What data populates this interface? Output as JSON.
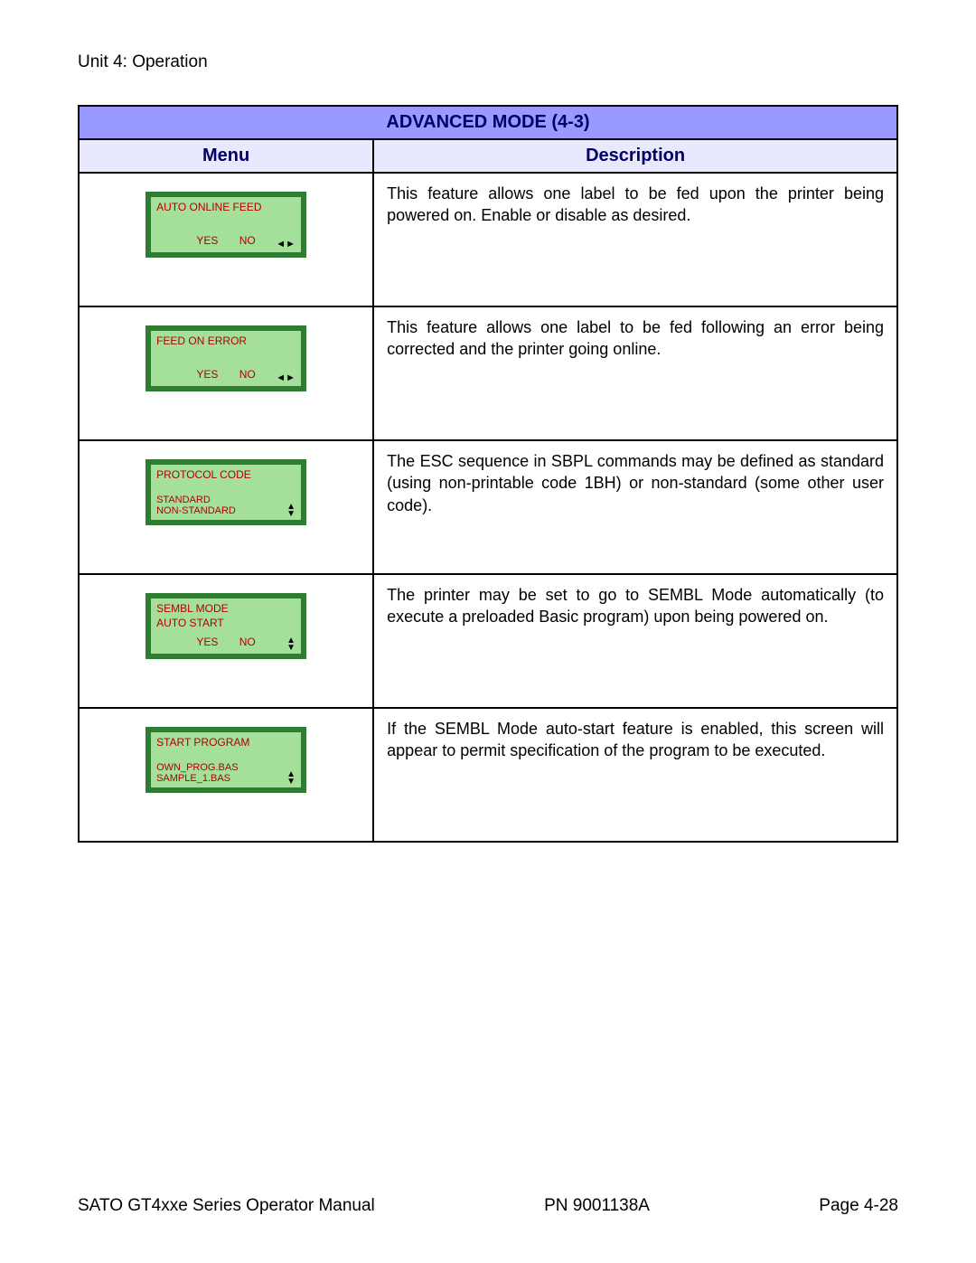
{
  "header": {
    "unit_line": "Unit 4:   Operation"
  },
  "table": {
    "title": "ADVANCED MODE (4-3)",
    "col_menu": "Menu",
    "col_desc": "Description",
    "colors": {
      "title_bg": "#9999ff",
      "header_bg": "#e8e8ff",
      "header_fg": "#000066",
      "lcd_frame": "#2e7d32",
      "lcd_screen": "#a5e09b",
      "lcd_text": "#b00000",
      "border": "#000000"
    },
    "rows": [
      {
        "lcd": {
          "type": "yesno",
          "line1": "AUTO ONLINE FEED",
          "line2": "",
          "yes": "YES",
          "no": "NO",
          "arrows": "lr"
        },
        "desc": "This feature allows one label to be fed upon the printer being powered on. Enable or disable as desired."
      },
      {
        "lcd": {
          "type": "yesno",
          "line1": "FEED ON ERROR",
          "line2": "",
          "yes": "YES",
          "no": "NO",
          "arrows": "lr"
        },
        "desc": "This feature allows one label to be fed following an error being corrected and the printer going online."
      },
      {
        "lcd": {
          "type": "list",
          "line1": "PROTOCOL CODE",
          "opt1": "STANDARD",
          "opt2": "NON-STANDARD",
          "arrows": "ud"
        },
        "desc": "The ESC sequence in SBPL commands may be defined as standard (using non-printable code 1BH) or non-standard (some other user code)."
      },
      {
        "lcd": {
          "type": "yesno2",
          "line1": "SEMBL MODE",
          "line2": "AUTO START",
          "yes": "YES",
          "no": "NO",
          "arrows": "ud"
        },
        "desc": "The printer may be set to go to SEMBL Mode automatically (to execute a preloaded Basic program) upon being powered on."
      },
      {
        "lcd": {
          "type": "list",
          "line1": "START PROGRAM",
          "opt1": "OWN_PROG.BAS",
          "opt2": "SAMPLE_1.BAS",
          "arrows": "ud"
        },
        "desc": "If the SEMBL Mode auto-start feature is enabled, this screen will appear to permit specification of the program to be executed."
      }
    ]
  },
  "footer": {
    "left": "SATO GT4xxe Series Operator Manual",
    "center": "PN  9001138A",
    "right": "Page 4-28"
  }
}
